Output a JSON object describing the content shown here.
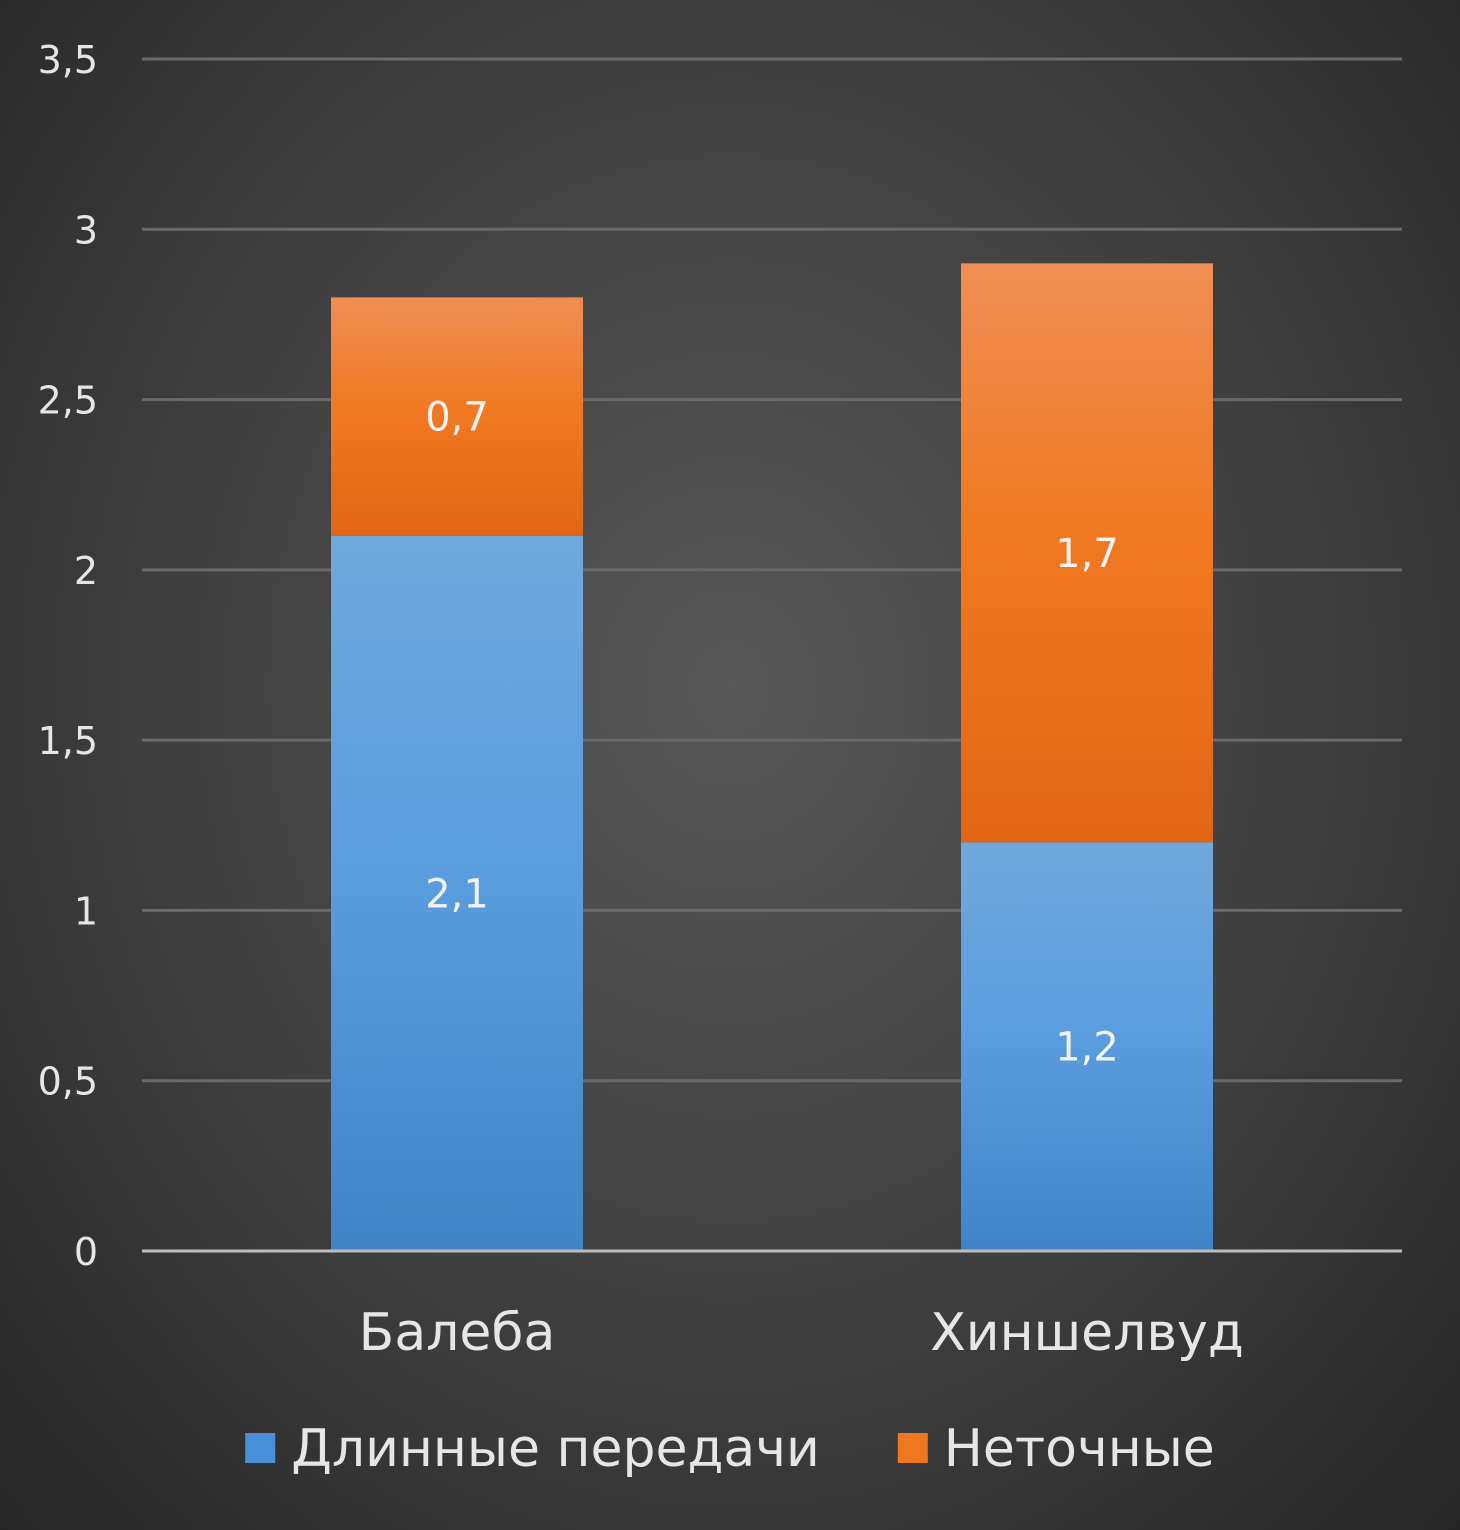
{
  "chart_data": {
    "type": "bar",
    "stacked": true,
    "categories": [
      "Балеба",
      "Хиншелвуд"
    ],
    "series": [
      {
        "name": "Длинные передачи",
        "values": [
          2.1,
          1.2
        ],
        "labels": [
          "2,1",
          "1,2"
        ],
        "color": "#4a90d9"
      },
      {
        "name": "Неточные",
        "values": [
          0.7,
          1.7
        ],
        "labels": [
          "0,7",
          "1,7"
        ],
        "color": "#ee7720"
      }
    ],
    "ylim": [
      0,
      3.5
    ],
    "yticks": [
      0,
      0.5,
      1,
      1.5,
      2,
      2.5,
      3,
      3.5
    ],
    "ytick_labels": [
      "0",
      "0,5",
      "1",
      "1,5",
      "2",
      "2,5",
      "3",
      "3,5"
    ],
    "grid": true,
    "legend_position": "bottom",
    "title": "",
    "xlabel": "",
    "ylabel": ""
  },
  "colors": {
    "background": "#474747",
    "gridline": "#6a6a6a",
    "axis": "#bdbdbd",
    "text": "#e6e6e6"
  }
}
